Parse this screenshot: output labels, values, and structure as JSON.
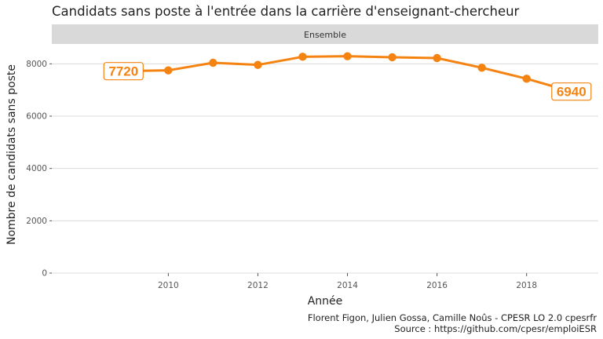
{
  "chart_data": {
    "type": "line",
    "title": "Candidats sans poste à l'entrée dans la carrière d'enseignant-chercheur",
    "facet": "Ensemble",
    "xlabel": "Année",
    "ylabel": "Nombre de candidats sans poste",
    "x": [
      2009,
      2010,
      2011,
      2012,
      2013,
      2014,
      2015,
      2016,
      2017,
      2018,
      2019
    ],
    "series": [
      {
        "values": [
          7720,
          7750,
          8040,
          7960,
          8270,
          8290,
          8250,
          8220,
          7850,
          7430,
          6940
        ],
        "color": "#F58311"
      }
    ],
    "x_ticks": [
      2010,
      2012,
      2014,
      2016,
      2018
    ],
    "y_ticks": [
      0,
      2000,
      4000,
      6000,
      8000
    ],
    "xlim": [
      2007.4,
      2019.6
    ],
    "ylim": [
      0,
      8700
    ],
    "grid": true,
    "end_labels": {
      "first": "7720",
      "last": "6940"
    },
    "caption": [
      "Florent Figon, Julien Gossa, Camille Noûs - CPESR LO 2.0 cpesrfr",
      "Source : https://github.com/cpesr/emploiESR"
    ]
  }
}
